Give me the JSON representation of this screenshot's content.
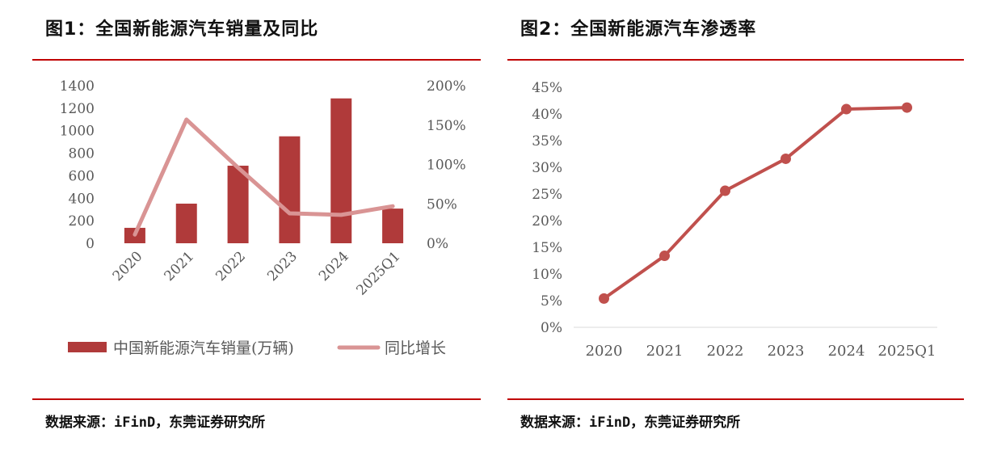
{
  "colors": {
    "accent_rule": "#c00000",
    "bar": "#b03a3a",
    "yoy_line": "#d99494",
    "penetration_line": "#c0504d",
    "axis_text": "#595959",
    "title_text": "#111111"
  },
  "chart_data": [
    {
      "type": "bar",
      "title": "图1：全国新能源汽车销量及同比",
      "categories": [
        "2020",
        "2021",
        "2022",
        "2023",
        "2024",
        "2025Q1"
      ],
      "series": [
        {
          "name": "中国新能源汽车销量(万辆)",
          "type": "bar",
          "axis": "left",
          "values": [
            137,
            352,
            689,
            950,
            1287,
            308
          ]
        },
        {
          "name": "同比增长",
          "type": "line",
          "axis": "right",
          "values": [
            11,
            157,
            96,
            38,
            36,
            47
          ]
        }
      ],
      "y_left": {
        "ylim": [
          0,
          1400
        ],
        "ticks": [
          "0",
          "200",
          "400",
          "600",
          "800",
          "1000",
          "1200",
          "1400"
        ]
      },
      "y_right": {
        "ylim": [
          0,
          200
        ],
        "ticks": [
          "0%",
          "50%",
          "100%",
          "150%",
          "200%"
        ]
      },
      "legend_position": "bottom",
      "grid": false,
      "source": "数据来源：iFinD，东莞证券研究所"
    },
    {
      "type": "line",
      "title": "图2：全国新能源汽车渗透率",
      "categories": [
        "2020",
        "2021",
        "2022",
        "2023",
        "2024",
        "2025Q1"
      ],
      "series": [
        {
          "values": [
            5.4,
            13.4,
            25.6,
            31.6,
            40.9,
            41.2
          ]
        }
      ],
      "ylim": [
        0,
        45
      ],
      "y_ticks": [
        "0%",
        "5%",
        "10%",
        "15%",
        "20%",
        "25%",
        "30%",
        "35%",
        "40%",
        "45%"
      ],
      "grid": false,
      "source": "数据来源：iFinD，东莞证券研究所"
    }
  ]
}
